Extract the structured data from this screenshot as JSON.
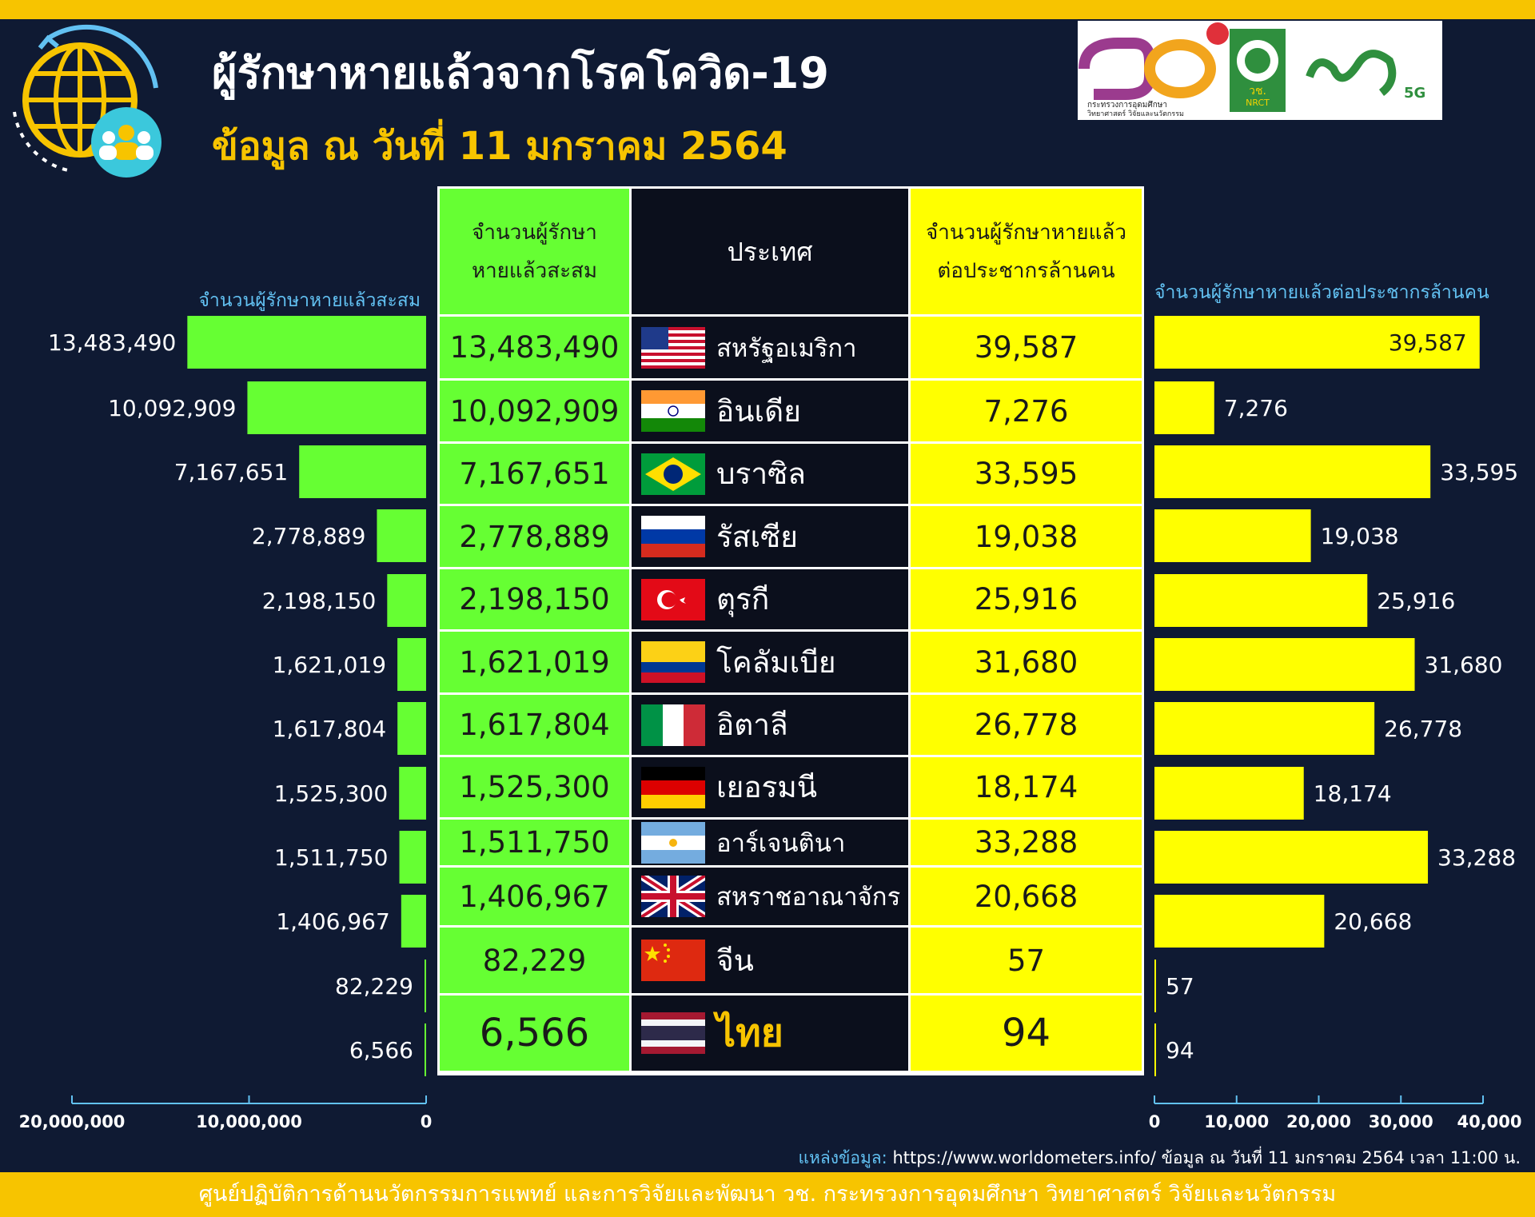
{
  "header": {
    "title": "ผู้รักษาหายแล้วจากโรคโควิด-19",
    "subtitle": "ข้อมูล ณ วันที่ 11 มกราคม 2564"
  },
  "logos": {
    "ministry_line1": "กระทรวงการอุดมศึกษา",
    "ministry_line2": "วิทยาศาสตร์ วิจัยและนวัตกรรม",
    "nrct_line1": "วช.",
    "nrct_line2": "NRCT",
    "brand_badge": "5G"
  },
  "table": {
    "col_cumulative": "จำนวนผู้รักษาหายแล้วสะสม",
    "col_country": "ประเทศ",
    "col_per_million": "จำนวนผู้รักษาหายแล้วต่อประชากรล้านคน"
  },
  "left_chart_title": "จำนวนผู้รักษาหายแล้วสะสม",
  "right_chart_title": "จำนวนผู้รักษาหายแล้วต่อประชากรล้านคน",
  "rows": [
    {
      "country": "สหรัฐอเมริกา",
      "flag": "usa-flag-icon",
      "cumulative_label": "13,483,490",
      "per_million_label": "39,587"
    },
    {
      "country": "อินเดีย",
      "flag": "india-flag-icon",
      "cumulative_label": "10,092,909",
      "per_million_label": "7,276"
    },
    {
      "country": "บราซิล",
      "flag": "brazil-flag-icon",
      "cumulative_label": "7,167,651",
      "per_million_label": "33,595"
    },
    {
      "country": "รัสเซีย",
      "flag": "russia-flag-icon",
      "cumulative_label": "2,778,889",
      "per_million_label": "19,038"
    },
    {
      "country": "ตุรกี",
      "flag": "turkey-flag-icon",
      "cumulative_label": "2,198,150",
      "per_million_label": "25,916"
    },
    {
      "country": "โคลัมเบีย",
      "flag": "colombia-flag-icon",
      "cumulative_label": "1,621,019",
      "per_million_label": "31,680"
    },
    {
      "country": "อิตาลี",
      "flag": "italy-flag-icon",
      "cumulative_label": "1,617,804",
      "per_million_label": "26,778"
    },
    {
      "country": "เยอรมนี",
      "flag": "germany-flag-icon",
      "cumulative_label": "1,525,300",
      "per_million_label": "18,174"
    },
    {
      "country": "อาร์เจนตินา",
      "flag": "argentina-flag-icon",
      "cumulative_label": "1,511,750",
      "per_million_label": "33,288"
    },
    {
      "country": "สหราชอาณาจักร",
      "flag": "uk-flag-icon",
      "cumulative_label": "1,406,967",
      "per_million_label": "20,668"
    },
    {
      "country": "จีน",
      "flag": "china-flag-icon",
      "cumulative_label": "82,229",
      "per_million_label": "57"
    },
    {
      "country": "ไทย",
      "flag": "thailand-flag-icon",
      "cumulative_label": "6,566",
      "per_million_label": "94"
    }
  ],
  "chart_data": [
    {
      "type": "bar",
      "orientation": "horizontal",
      "direction": "right-to-left",
      "title": "จำนวนผู้รักษาหายแล้วสะสม",
      "categories": [
        "สหรัฐอเมริกา",
        "อินเดีย",
        "บราซิล",
        "รัสเซีย",
        "ตุรกี",
        "โคลัมเบีย",
        "อิตาลี",
        "เยอรมนี",
        "อาร์เจนตินา",
        "สหราชอาณาจักร",
        "จีน",
        "ไทย"
      ],
      "values": [
        13483490,
        10092909,
        7167651,
        2778889,
        2198150,
        1621019,
        1617804,
        1525300,
        1511750,
        1406967,
        82229,
        6566
      ],
      "xlim": [
        0,
        20000000
      ],
      "ticks": [
        "20,000,000",
        "10,000,000",
        "0"
      ],
      "tick_values": [
        20000000,
        10000000,
        0
      ],
      "grid": false,
      "color": "#66ff33"
    },
    {
      "type": "bar",
      "orientation": "horizontal",
      "title": "จำนวนผู้รักษาหายแล้วต่อประชากรล้านคน",
      "categories": [
        "สหรัฐอเมริกา",
        "อินเดีย",
        "บราซิล",
        "รัสเซีย",
        "ตุรกี",
        "โคลัมเบีย",
        "อิตาลี",
        "เยอรมนี",
        "อาร์เจนตินา",
        "สหราชอาณาจักร",
        "จีน",
        "ไทย"
      ],
      "values": [
        39587,
        7276,
        33595,
        19038,
        25916,
        31680,
        26778,
        18174,
        33288,
        20668,
        57,
        94
      ],
      "xlim": [
        0,
        40000
      ],
      "ticks": [
        "0",
        "10,000",
        "20,000",
        "30,000",
        "40,000"
      ],
      "tick_values": [
        0,
        10000,
        20000,
        30000,
        40000
      ],
      "grid": false,
      "color": "#ffff00"
    }
  ],
  "source": {
    "label": "แหล่งข้อมูล:",
    "text": "https://www.worldometers.info/ ข้อมูล ณ วันที่ 11 มกราคม 2564 เวลา 11:00 น."
  },
  "footer": {
    "text": "ศูนย์ปฏิบัติการด้านนวัตกรรมการแพทย์ และการวิจัยและพัฒนา วช. กระทรวงการอุดมศึกษา วิทยาศาสตร์ วิจัยและนวัตกรรม"
  },
  "colors": {
    "background": "#0f1a33",
    "accent_yellow": "#f7c400",
    "green_bar": "#66ff33",
    "yellow_bar": "#ffff00",
    "label_blue": "#62c1f2"
  }
}
